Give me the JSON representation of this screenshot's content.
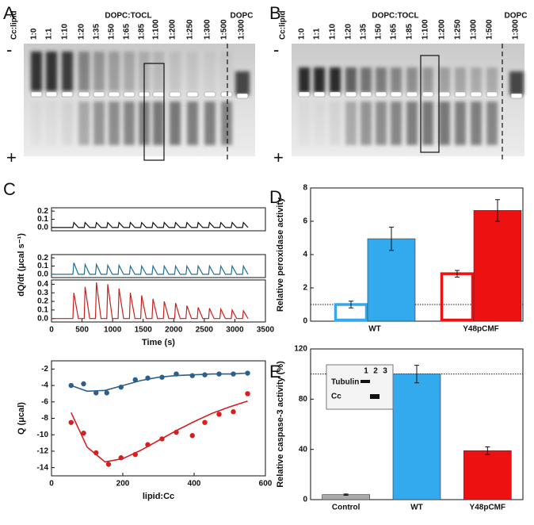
{
  "panel_labels": [
    "A",
    "B",
    "C",
    "D",
    "E"
  ],
  "gels": [
    {
      "header": "DOPC:TOCL",
      "control_header": "DOPC",
      "minus": "-",
      "plus": "+",
      "lanes": [
        "Cc:lipid",
        "1:0",
        "1:1",
        "1:10",
        "1:20",
        "1:35",
        "1:50",
        "1:65",
        "1:85",
        "1:100",
        "1:200",
        "1:250",
        "1:300",
        "1:500"
      ],
      "control_lane": "1:300"
    },
    {
      "header": "DOPC:TOCL",
      "control_header": "DOPC",
      "minus": "-",
      "plus": "+",
      "lanes": [
        "Cc:lipid",
        "1:0",
        "1:1",
        "1:10",
        "1:20",
        "1:35",
        "1:50",
        "1:65",
        "1:85",
        "1:100",
        "1:200",
        "1:250",
        "1:300",
        "1:500"
      ],
      "control_lane": "1:300"
    }
  ],
  "chart_data": [
    {
      "type": "line",
      "x": [
        0,
        350,
        365,
        440,
        535,
        550,
        625,
        720,
        735,
        810,
        905,
        920,
        995,
        1090,
        1105,
        1180,
        1275,
        1290,
        1365,
        1460,
        1475,
        1550,
        1645,
        1660,
        1735,
        1830,
        1845,
        1920,
        2015,
        2030,
        2105,
        2200,
        2215,
        2290,
        2385,
        2400,
        2475,
        2570,
        2585,
        2660,
        2755,
        2770,
        2845,
        2940,
        2955,
        3030,
        3125,
        3140,
        3215
      ],
      "series": [
        {
          "color": "#111111",
          "values": [
            0,
            0,
            0.06,
            0,
            0,
            0.06,
            0,
            0,
            0.06,
            0,
            0,
            0.06,
            0,
            0,
            0.06,
            0,
            0,
            0.06,
            0,
            0,
            0.06,
            0,
            0,
            0.06,
            0,
            0,
            0.06,
            0,
            0,
            0.06,
            0,
            0,
            0.06,
            0,
            0,
            0.06,
            0,
            0,
            0.06,
            0,
            0,
            0.06,
            0,
            0,
            0.06,
            0,
            0,
            0.06,
            0
          ]
        }
      ],
      "xlim": [
        0,
        3500
      ],
      "ylim": [
        -0.04,
        0.24
      ],
      "yticks": [
        {
          "value": 0,
          "label": "0.0"
        },
        0.1,
        0.2
      ]
    },
    {
      "type": "line",
      "ylabel": "dQ/dt (μcal s⁻¹)",
      "x": [
        0,
        350,
        365,
        440,
        535,
        550,
        625,
        720,
        735,
        810,
        905,
        920,
        995,
        1090,
        1105,
        1180,
        1275,
        1290,
        1365,
        1460,
        1475,
        1550,
        1645,
        1660,
        1735,
        1830,
        1845,
        1920,
        2015,
        2030,
        2105,
        2200,
        2215,
        2290,
        2385,
        2400,
        2475,
        2570,
        2585,
        2660,
        2755,
        2770,
        2845,
        2940,
        2955,
        3030,
        3125,
        3140,
        3215
      ],
      "series": [
        {
          "color": "#1f6f9a",
          "values": [
            0,
            0,
            0.14,
            0,
            0,
            0.12,
            0,
            0,
            0.12,
            0,
            0,
            0.11,
            0,
            0,
            0.11,
            0,
            0,
            0.1,
            0,
            0,
            0.1,
            0,
            0,
            0.1,
            0,
            0,
            0.1,
            0,
            0,
            0.1,
            0,
            0,
            0.1,
            0,
            0,
            0.1,
            0,
            0,
            0.1,
            0,
            0,
            0.1,
            0,
            0,
            0.1,
            0,
            0,
            0.1,
            0
          ]
        }
      ],
      "xlim": [
        0,
        3500
      ],
      "ylim": [
        -0.04,
        0.24
      ],
      "yticks": [
        {
          "value": 0,
          "label": "0.0"
        },
        0.1,
        0.2
      ]
    },
    {
      "type": "line",
      "xlabel": "Time (s)",
      "x": [
        0,
        350,
        365,
        440,
        535,
        550,
        625,
        720,
        735,
        810,
        905,
        920,
        995,
        1090,
        1105,
        1180,
        1275,
        1290,
        1365,
        1460,
        1475,
        1550,
        1645,
        1660,
        1735,
        1830,
        1845,
        1920,
        2015,
        2030,
        2105,
        2200,
        2215,
        2290,
        2385,
        2400,
        2475,
        2570,
        2585,
        2660,
        2755,
        2770,
        2845,
        2940,
        2955,
        3030,
        3125,
        3140,
        3215
      ],
      "series": [
        {
          "color": "#c8201f",
          "values": [
            0,
            0,
            0.3,
            0,
            0,
            0.37,
            0,
            0,
            0.42,
            0,
            0,
            0.4,
            0,
            0,
            0.35,
            0,
            0,
            0.3,
            0,
            0,
            0.27,
            0,
            0,
            0.23,
            0,
            0,
            0.2,
            0,
            0,
            0.18,
            0,
            0,
            0.15,
            0,
            0,
            0.13,
            0,
            0,
            0.12,
            0,
            0,
            0.11,
            0,
            0,
            0.1,
            0,
            0,
            0.09,
            0
          ]
        }
      ],
      "xlim": [
        0,
        3500
      ],
      "xticks": [
        0,
        500,
        1000,
        1500,
        2000,
        2500,
        3000,
        3500
      ],
      "ylim": [
        -0.04,
        0.45
      ],
      "yticks": [
        {
          "value": 0,
          "label": "0.0"
        },
        0.1,
        0.2,
        0.3,
        0.4
      ]
    },
    {
      "type": "scatter",
      "xlabel": "lipid:Cc",
      "ylabel": "Q (μcal)",
      "xlim": [
        0,
        600
      ],
      "xticks": [
        0,
        200,
        400,
        600
      ],
      "ylim": [
        -15,
        -1
      ],
      "yticks": [
        -2,
        -4,
        -6,
        -8,
        -10,
        -12,
        -14
      ],
      "series": [
        {
          "style": "points",
          "color": "#2e5f8a",
          "x": [
            55,
            90,
            125,
            155,
            195,
            235,
            270,
            310,
            350,
            395,
            430,
            470,
            510,
            550
          ],
          "values": [
            -4.0,
            -3.8,
            -4.9,
            -4.9,
            -4.2,
            -3.3,
            -3.1,
            -3.0,
            -2.6,
            -2.8,
            -2.7,
            -2.6,
            -2.6,
            -2.5
          ]
        },
        {
          "style": "points",
          "color": "#d42020",
          "x": [
            55,
            90,
            125,
            160,
            195,
            235,
            270,
            310,
            350,
            395,
            430,
            470,
            510,
            550
          ],
          "values": [
            -8.5,
            -9.8,
            -12.2,
            -13.6,
            -12.8,
            -12.4,
            -11.2,
            -10.5,
            -9.7,
            -10.1,
            -8.5,
            -7.5,
            -7.2,
            -5.0
          ]
        },
        {
          "style": "line",
          "color": "#2e5f8a",
          "x": [
            55,
            100,
            150,
            200,
            250,
            300,
            350,
            400,
            450,
            500,
            550
          ],
          "values": [
            -4.0,
            -4.7,
            -4.6,
            -4.0,
            -3.4,
            -3.0,
            -2.8,
            -2.7,
            -2.6,
            -2.6,
            -2.5
          ]
        },
        {
          "style": "line",
          "color": "#d42020",
          "x": [
            55,
            100,
            150,
            200,
            250,
            300,
            350,
            400,
            450,
            500,
            550
          ],
          "values": [
            -7.3,
            -11.5,
            -13.3,
            -12.9,
            -11.9,
            -10.7,
            -9.5,
            -8.4,
            -7.4,
            -6.6,
            -5.9
          ]
        }
      ]
    },
    {
      "type": "bar",
      "ylabel": "Relative peroxidase activity",
      "categories": [
        "WT",
        "Y48pCMF"
      ],
      "ylim": [
        0,
        8
      ],
      "yticks": [
        0,
        2,
        4,
        6,
        8
      ],
      "refline": 1,
      "series": [
        {
          "filled": false,
          "colors": [
            "#33aaee",
            "#ee1111"
          ],
          "values": [
            1.0,
            2.85
          ],
          "errors": [
            0.2,
            0.2
          ]
        },
        {
          "filled": true,
          "colors": [
            "#33aaee",
            "#ee1111"
          ],
          "values": [
            4.95,
            6.65
          ],
          "errors": [
            0.7,
            0.65
          ]
        }
      ]
    },
    {
      "type": "bar",
      "ylabel": "Relative caspase-3 activity (%)",
      "categories": [
        "Control",
        "WT",
        "Y48pCMF"
      ],
      "ylim": [
        0,
        120
      ],
      "yticks": [
        0,
        40,
        80,
        120
      ],
      "refline": 100,
      "series": [
        {
          "filled": true,
          "colors": [
            "#aaaaaa",
            "#33aaee",
            "#ee1111"
          ],
          "values": [
            4,
            100,
            39
          ],
          "errors": [
            0.5,
            7,
            3
          ]
        }
      ],
      "inset": {
        "lanes": [
          "1",
          "2",
          "3"
        ],
        "rows": [
          "Tubulin",
          "Cc"
        ]
      }
    }
  ]
}
